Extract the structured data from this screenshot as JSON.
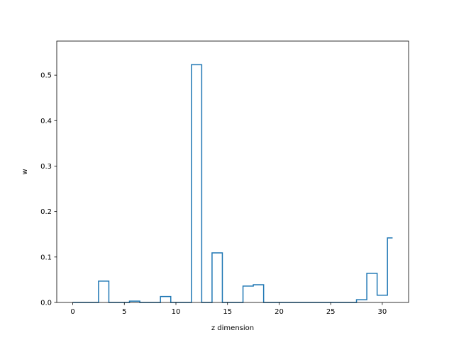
{
  "chart_data": {
    "type": "line",
    "drawstyle": "steps-mid",
    "title": "",
    "xlabel": "z dimension",
    "ylabel": "w",
    "xlim": [
      -1.55,
      32.55
    ],
    "ylim": [
      0,
      0.575
    ],
    "x_ticks": [
      0,
      5,
      10,
      15,
      20,
      25,
      30
    ],
    "y_ticks": [
      0.0,
      0.1,
      0.2,
      0.3,
      0.4,
      0.5
    ],
    "x_tick_labels": [
      "0",
      "5",
      "10",
      "15",
      "20",
      "25",
      "30"
    ],
    "y_tick_labels": [
      "0.0",
      "0.1",
      "0.2",
      "0.3",
      "0.4",
      "0.5"
    ],
    "line_color": "#1f77b4",
    "grid": false,
    "x": [
      0,
      1,
      2,
      3,
      4,
      5,
      6,
      7,
      8,
      9,
      10,
      11,
      12,
      13,
      14,
      15,
      16,
      17,
      18,
      19,
      20,
      21,
      22,
      23,
      24,
      25,
      26,
      27,
      28,
      29,
      30,
      31
    ],
    "values": [
      0,
      0,
      0,
      0.047,
      0,
      0,
      0.003,
      0,
      0,
      0.013,
      0,
      0,
      0.523,
      0,
      0.109,
      0,
      0,
      0.036,
      0.039,
      0,
      0,
      0,
      0,
      0,
      0,
      0,
      0,
      0,
      0.006,
      0.064,
      0.016,
      0.142
    ]
  }
}
